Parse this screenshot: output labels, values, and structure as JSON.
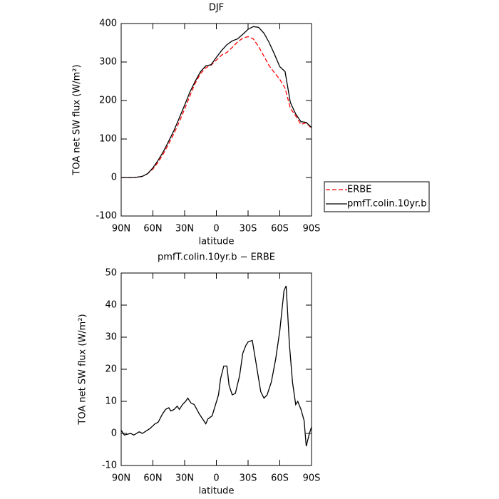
{
  "chart_data": [
    {
      "type": "line",
      "title": "DJF",
      "xlabel": "latitude",
      "ylabel": "TOA net SW flux (W/m²)",
      "x": [
        90,
        85,
        80,
        75,
        70,
        65,
        60,
        55,
        50,
        45,
        40,
        35,
        30,
        25,
        20,
        15,
        10,
        5,
        0,
        -5,
        -10,
        -15,
        -20,
        -25,
        -30,
        -35,
        -40,
        -45,
        -50,
        -55,
        -60,
        -65,
        -70,
        -75,
        -80,
        -85,
        -90
      ],
      "series": [
        {
          "name": "ERBE",
          "color": "#ff0000",
          "style": "dashed",
          "values": [
            0,
            0,
            0,
            1,
            3,
            10,
            22,
            40,
            62,
            88,
            115,
            145,
            178,
            212,
            245,
            270,
            285,
            292,
            305,
            318,
            325,
            338,
            352,
            362,
            366,
            360,
            340,
            315,
            290,
            272,
            255,
            232,
            180,
            160,
            138,
            142,
            128
          ]
        },
        {
          "name": "pmfT.colin.10yr.b",
          "color": "#000000",
          "style": "solid",
          "values": [
            0,
            0,
            0,
            1,
            3,
            10,
            25,
            45,
            68,
            95,
            123,
            155,
            188,
            222,
            250,
            275,
            290,
            293,
            312,
            330,
            345,
            355,
            360,
            372,
            385,
            392,
            390,
            375,
            350,
            320,
            288,
            275,
            195,
            165,
            145,
            143,
            130
          ]
        }
      ],
      "xlim": [
        90,
        -90
      ],
      "xticks": [
        {
          "value": 90,
          "label": "90N"
        },
        {
          "value": 60,
          "label": "60N"
        },
        {
          "value": 30,
          "label": "30N"
        },
        0,
        {
          "value": -30,
          "label": "30S"
        },
        {
          "value": -60,
          "label": "60S"
        },
        {
          "value": -90,
          "label": "90S"
        }
      ],
      "ylim": [
        -100,
        400
      ],
      "yticks": [
        -100,
        0,
        100,
        200,
        300,
        400
      ]
    },
    {
      "type": "line",
      "title": "pmfT.colin.10yr.b − ERBE",
      "xlabel": "latitude",
      "ylabel": "TOA net SW flux (W/m²)",
      "x": [
        90,
        87,
        81,
        78,
        73,
        70,
        63,
        58,
        55,
        51,
        48,
        45,
        43,
        40,
        37,
        35,
        32,
        29,
        27,
        24,
        21,
        16,
        10,
        8,
        4,
        -2,
        -4,
        -7,
        -10,
        -12,
        -15,
        -18,
        -22,
        -25,
        -28,
        -30,
        -34,
        -37,
        -40,
        -42,
        -45,
        -48,
        -52,
        -56,
        -60,
        -64,
        -66,
        -69,
        -72,
        -75,
        -77,
        -80,
        -83,
        -85,
        -88,
        -90
      ],
      "values": [
        1,
        -0.5,
        0,
        -0.5,
        0.5,
        0,
        1.5,
        3,
        3.5,
        6,
        7.5,
        8,
        7,
        7.5,
        8.5,
        7.5,
        9,
        10,
        11,
        9.5,
        9,
        6,
        3,
        4.5,
        5.5,
        12,
        17,
        21,
        21,
        15,
        12,
        12.5,
        18,
        25,
        27.5,
        28.5,
        29,
        23,
        17,
        13,
        11,
        12,
        16,
        23,
        32,
        44.5,
        46,
        28,
        16,
        9,
        10,
        7.5,
        4,
        -4,
        0,
        2
      ],
      "color": "#000000",
      "xlim": [
        90,
        -90
      ],
      "xticks": [
        {
          "value": 90,
          "label": "90N"
        },
        {
          "value": 60,
          "label": "60N"
        },
        {
          "value": 30,
          "label": "30N"
        },
        0,
        {
          "value": -30,
          "label": "30S"
        },
        {
          "value": -60,
          "label": "60S"
        },
        {
          "value": -90,
          "label": "90S"
        }
      ],
      "ylim": [
        -10,
        50
      ],
      "yticks": [
        -10,
        0,
        10,
        20,
        30,
        40,
        50
      ]
    }
  ]
}
